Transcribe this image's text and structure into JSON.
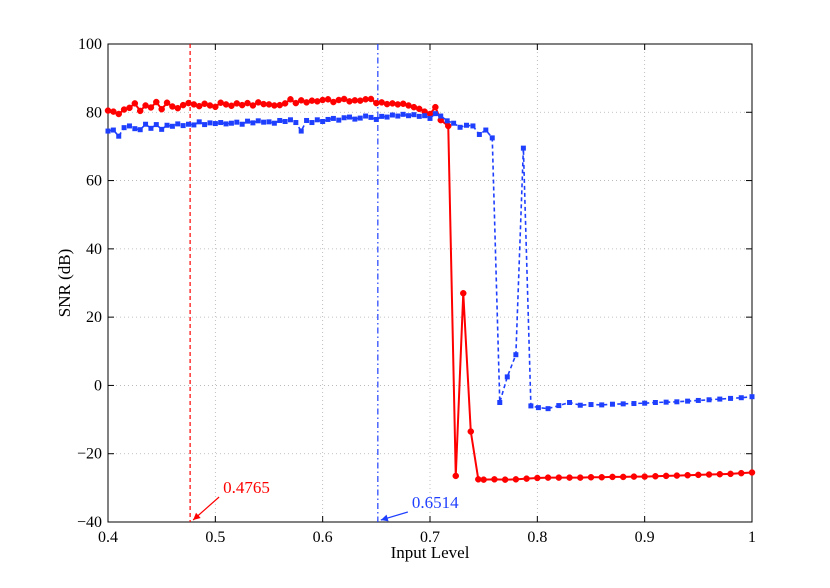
{
  "chart_data": {
    "type": "line",
    "title": "",
    "xlabel": "Input Level",
    "ylabel": "SNR (dB)",
    "xlim": [
      0.4,
      1.0
    ],
    "ylim": [
      -40,
      100
    ],
    "xticks": [
      0.4,
      0.5,
      0.6,
      0.7,
      0.8,
      0.9,
      1.0
    ],
    "xtick_labels": [
      "0.4",
      "0.5",
      "0.6",
      "0.7",
      "0.8",
      "0.9",
      "1"
    ],
    "yticks": [
      -40,
      -20,
      0,
      20,
      40,
      60,
      80,
      100
    ],
    "ytick_labels": [
      "−40",
      "−20",
      "0",
      "20",
      "40",
      "60",
      "80",
      "100"
    ],
    "grid": true,
    "series": [
      {
        "color": "#ff0000",
        "line_style": "solid",
        "marker": "circle",
        "x": [
          0.4,
          0.405,
          0.41,
          0.415,
          0.42,
          0.425,
          0.43,
          0.435,
          0.44,
          0.445,
          0.45,
          0.455,
          0.46,
          0.465,
          0.47,
          0.475,
          0.48,
          0.485,
          0.49,
          0.495,
          0.5,
          0.505,
          0.51,
          0.515,
          0.52,
          0.525,
          0.53,
          0.535,
          0.54,
          0.545,
          0.55,
          0.555,
          0.56,
          0.565,
          0.57,
          0.575,
          0.58,
          0.585,
          0.59,
          0.595,
          0.6,
          0.605,
          0.61,
          0.615,
          0.62,
          0.625,
          0.63,
          0.635,
          0.64,
          0.645,
          0.65,
          0.655,
          0.66,
          0.665,
          0.67,
          0.675,
          0.68,
          0.685,
          0.69,
          0.695,
          0.7,
          0.705,
          0.71,
          0.717,
          0.724,
          0.731,
          0.738,
          0.745,
          0.75,
          0.76,
          0.77,
          0.78,
          0.79,
          0.8,
          0.81,
          0.82,
          0.83,
          0.84,
          0.85,
          0.86,
          0.87,
          0.88,
          0.89,
          0.9,
          0.91,
          0.92,
          0.93,
          0.94,
          0.95,
          0.96,
          0.97,
          0.98,
          0.99,
          1.0
        ],
        "y": [
          80.5,
          80.2,
          79.5,
          80.8,
          81.3,
          82.6,
          80.4,
          82.0,
          81.4,
          83.0,
          80.9,
          82.8,
          81.7,
          81.2,
          82.1,
          82.7,
          82.3,
          81.8,
          82.5,
          82.0,
          81.6,
          82.8,
          82.3,
          81.9,
          82.6,
          82.1,
          82.7,
          82.0,
          82.9,
          82.4,
          82.3,
          82.0,
          82.1,
          82.6,
          83.8,
          82.7,
          83.5,
          82.9,
          83.4,
          83.2,
          83.6,
          83.8,
          83.0,
          83.6,
          83.9,
          83.2,
          83.5,
          83.4,
          83.8,
          83.9,
          82.7,
          82.9,
          82.4,
          82.6,
          82.3,
          82.5,
          82.0,
          81.5,
          81.0,
          80.2,
          79.5,
          81.5,
          77.7,
          76.0,
          -26.5,
          27.0,
          -13.5,
          -27.5,
          -27.6,
          -27.5,
          -27.6,
          -27.5,
          -27.3,
          -27.1,
          -27.0,
          -27.0,
          -27.0,
          -27.0,
          -26.9,
          -26.9,
          -26.8,
          -26.8,
          -26.7,
          -26.7,
          -26.6,
          -26.5,
          -26.4,
          -26.3,
          -26.2,
          -26.1,
          -26.0,
          -25.9,
          -25.7,
          -25.5
        ]
      },
      {
        "color": "#1f3fff",
        "line_style": "dashed",
        "marker": "square",
        "x": [
          0.4,
          0.405,
          0.41,
          0.415,
          0.42,
          0.425,
          0.43,
          0.435,
          0.44,
          0.445,
          0.45,
          0.455,
          0.46,
          0.465,
          0.47,
          0.475,
          0.48,
          0.485,
          0.49,
          0.495,
          0.5,
          0.505,
          0.51,
          0.515,
          0.52,
          0.525,
          0.53,
          0.535,
          0.54,
          0.545,
          0.55,
          0.555,
          0.56,
          0.565,
          0.57,
          0.575,
          0.58,
          0.585,
          0.59,
          0.595,
          0.6,
          0.605,
          0.61,
          0.615,
          0.62,
          0.625,
          0.63,
          0.635,
          0.64,
          0.645,
          0.65,
          0.655,
          0.66,
          0.665,
          0.67,
          0.675,
          0.68,
          0.685,
          0.69,
          0.695,
          0.7,
          0.705,
          0.71,
          0.716,
          0.722,
          0.728,
          0.734,
          0.74,
          0.746,
          0.752,
          0.758,
          0.765,
          0.772,
          0.78,
          0.787,
          0.794,
          0.801,
          0.81,
          0.82,
          0.83,
          0.84,
          0.85,
          0.86,
          0.87,
          0.88,
          0.89,
          0.9,
          0.91,
          0.92,
          0.93,
          0.94,
          0.95,
          0.96,
          0.97,
          0.98,
          0.99,
          1.0
        ],
        "y": [
          74.5,
          74.8,
          73.0,
          75.5,
          76.0,
          75.2,
          74.9,
          76.5,
          75.3,
          76.4,
          75.0,
          76.2,
          75.9,
          76.6,
          76.1,
          76.5,
          76.3,
          77.2,
          76.4,
          76.9,
          76.7,
          77.0,
          76.6,
          76.8,
          77.1,
          76.5,
          77.4,
          76.9,
          77.5,
          77.1,
          77.2,
          76.8,
          77.6,
          77.3,
          77.8,
          77.0,
          74.5,
          77.6,
          77.0,
          77.8,
          77.3,
          77.9,
          78.2,
          77.7,
          78.4,
          78.6,
          78.0,
          78.3,
          78.9,
          78.5,
          77.9,
          78.8,
          78.6,
          79.2,
          78.9,
          79.4,
          79.0,
          79.3,
          78.8,
          79.0,
          78.2,
          79.6,
          78.9,
          77.5,
          76.8,
          75.6,
          76.2,
          76.0,
          73.5,
          74.8,
          72.5,
          -5.0,
          2.5,
          9.0,
          69.5,
          -6.0,
          -6.5,
          -6.8,
          -5.9,
          -5.0,
          -5.8,
          -5.6,
          -5.7,
          -5.5,
          -5.4,
          -5.3,
          -5.2,
          -5.0,
          -4.9,
          -4.8,
          -4.6,
          -4.4,
          -4.2,
          -4.0,
          -3.8,
          -3.6,
          -3.3
        ]
      }
    ],
    "vlines": [
      {
        "x": 0.4765,
        "color": "#ff0000",
        "line_style": "dashed"
      },
      {
        "x": 0.6514,
        "color": "#1f3fff",
        "line_style": "dashdot"
      }
    ],
    "annotations": [
      {
        "text": "0.4765",
        "color": "#ff0000",
        "arrow_to_x": 0.4765,
        "arrow_to_y": -40
      },
      {
        "text": "0.6514",
        "color": "#1f3fff",
        "arrow_to_x": 0.6514,
        "arrow_to_y": -40
      }
    ]
  }
}
